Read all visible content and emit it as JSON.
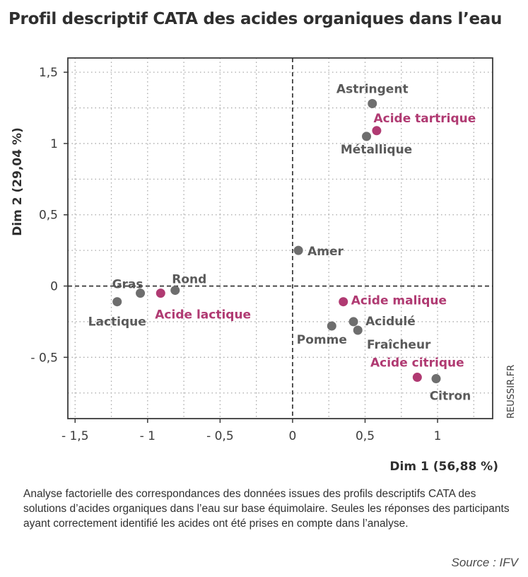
{
  "title": "Profil descriptif CATA des acides organiques dans l’eau",
  "caption": "Analyse factorielle des correspondances des données issues des profils descriptifs CATA des solutions d’acides organiques dans l’eau sur base équimolaire. Seules les réponses des participants ayant correctement identifié les acides ont été prises en compte dans l’analyse.",
  "source": "Source : IFV",
  "watermark": "REUSSIR.FR",
  "colors": {
    "descriptor": "#6e6e6e",
    "acid": "#b03a72"
  },
  "chart_data": {
    "type": "scatter",
    "xlabel": "Dim 1 (56,88 %)",
    "ylabel": "Dim 2 (29,04 %)",
    "xlim": [
      -1.55,
      1.38
    ],
    "ylim": [
      -0.93,
      1.6
    ],
    "xticks": [
      -1.5,
      -1,
      -0.5,
      0,
      0.5,
      1
    ],
    "xtick_labels": [
      "- 1,5",
      "- 1",
      "- 0,5",
      "0",
      "0,5",
      "1"
    ],
    "yticks": [
      -0.5,
      0,
      0.5,
      1,
      1.5
    ],
    "ytick_labels": [
      "- 0,5",
      "0",
      "0,5",
      "1",
      "1,5"
    ],
    "grid": true,
    "series": [
      {
        "name": "",
        "color": "#6e6e6e",
        "points": [
          {
            "label": "Astringent",
            "x": 0.55,
            "y": 1.28
          },
          {
            "label": "Métallique",
            "x": 0.51,
            "y": 1.05
          },
          {
            "label": "Amer",
            "x": 0.04,
            "y": 0.25
          },
          {
            "label": "Gras",
            "x": -1.05,
            "y": -0.05
          },
          {
            "label": "Rond",
            "x": -0.81,
            "y": -0.03
          },
          {
            "label": "Lactique",
            "x": -1.21,
            "y": -0.11
          },
          {
            "label": "Acidulé",
            "x": 0.42,
            "y": -0.25
          },
          {
            "label": "Pomme",
            "x": 0.27,
            "y": -0.28
          },
          {
            "label": "Fraîcheur",
            "x": 0.45,
            "y": -0.31
          },
          {
            "label": "Citron",
            "x": 0.99,
            "y": -0.65
          }
        ]
      },
      {
        "name": "",
        "color": "#b03a72",
        "points": [
          {
            "label": "Acide tartrique",
            "x": 0.58,
            "y": 1.09
          },
          {
            "label": "Acide lactique",
            "x": -0.91,
            "y": -0.05
          },
          {
            "label": "Acide malique",
            "x": 0.35,
            "y": -0.11
          },
          {
            "label": "Acide citrique",
            "x": 0.86,
            "y": -0.64
          }
        ]
      }
    ]
  }
}
